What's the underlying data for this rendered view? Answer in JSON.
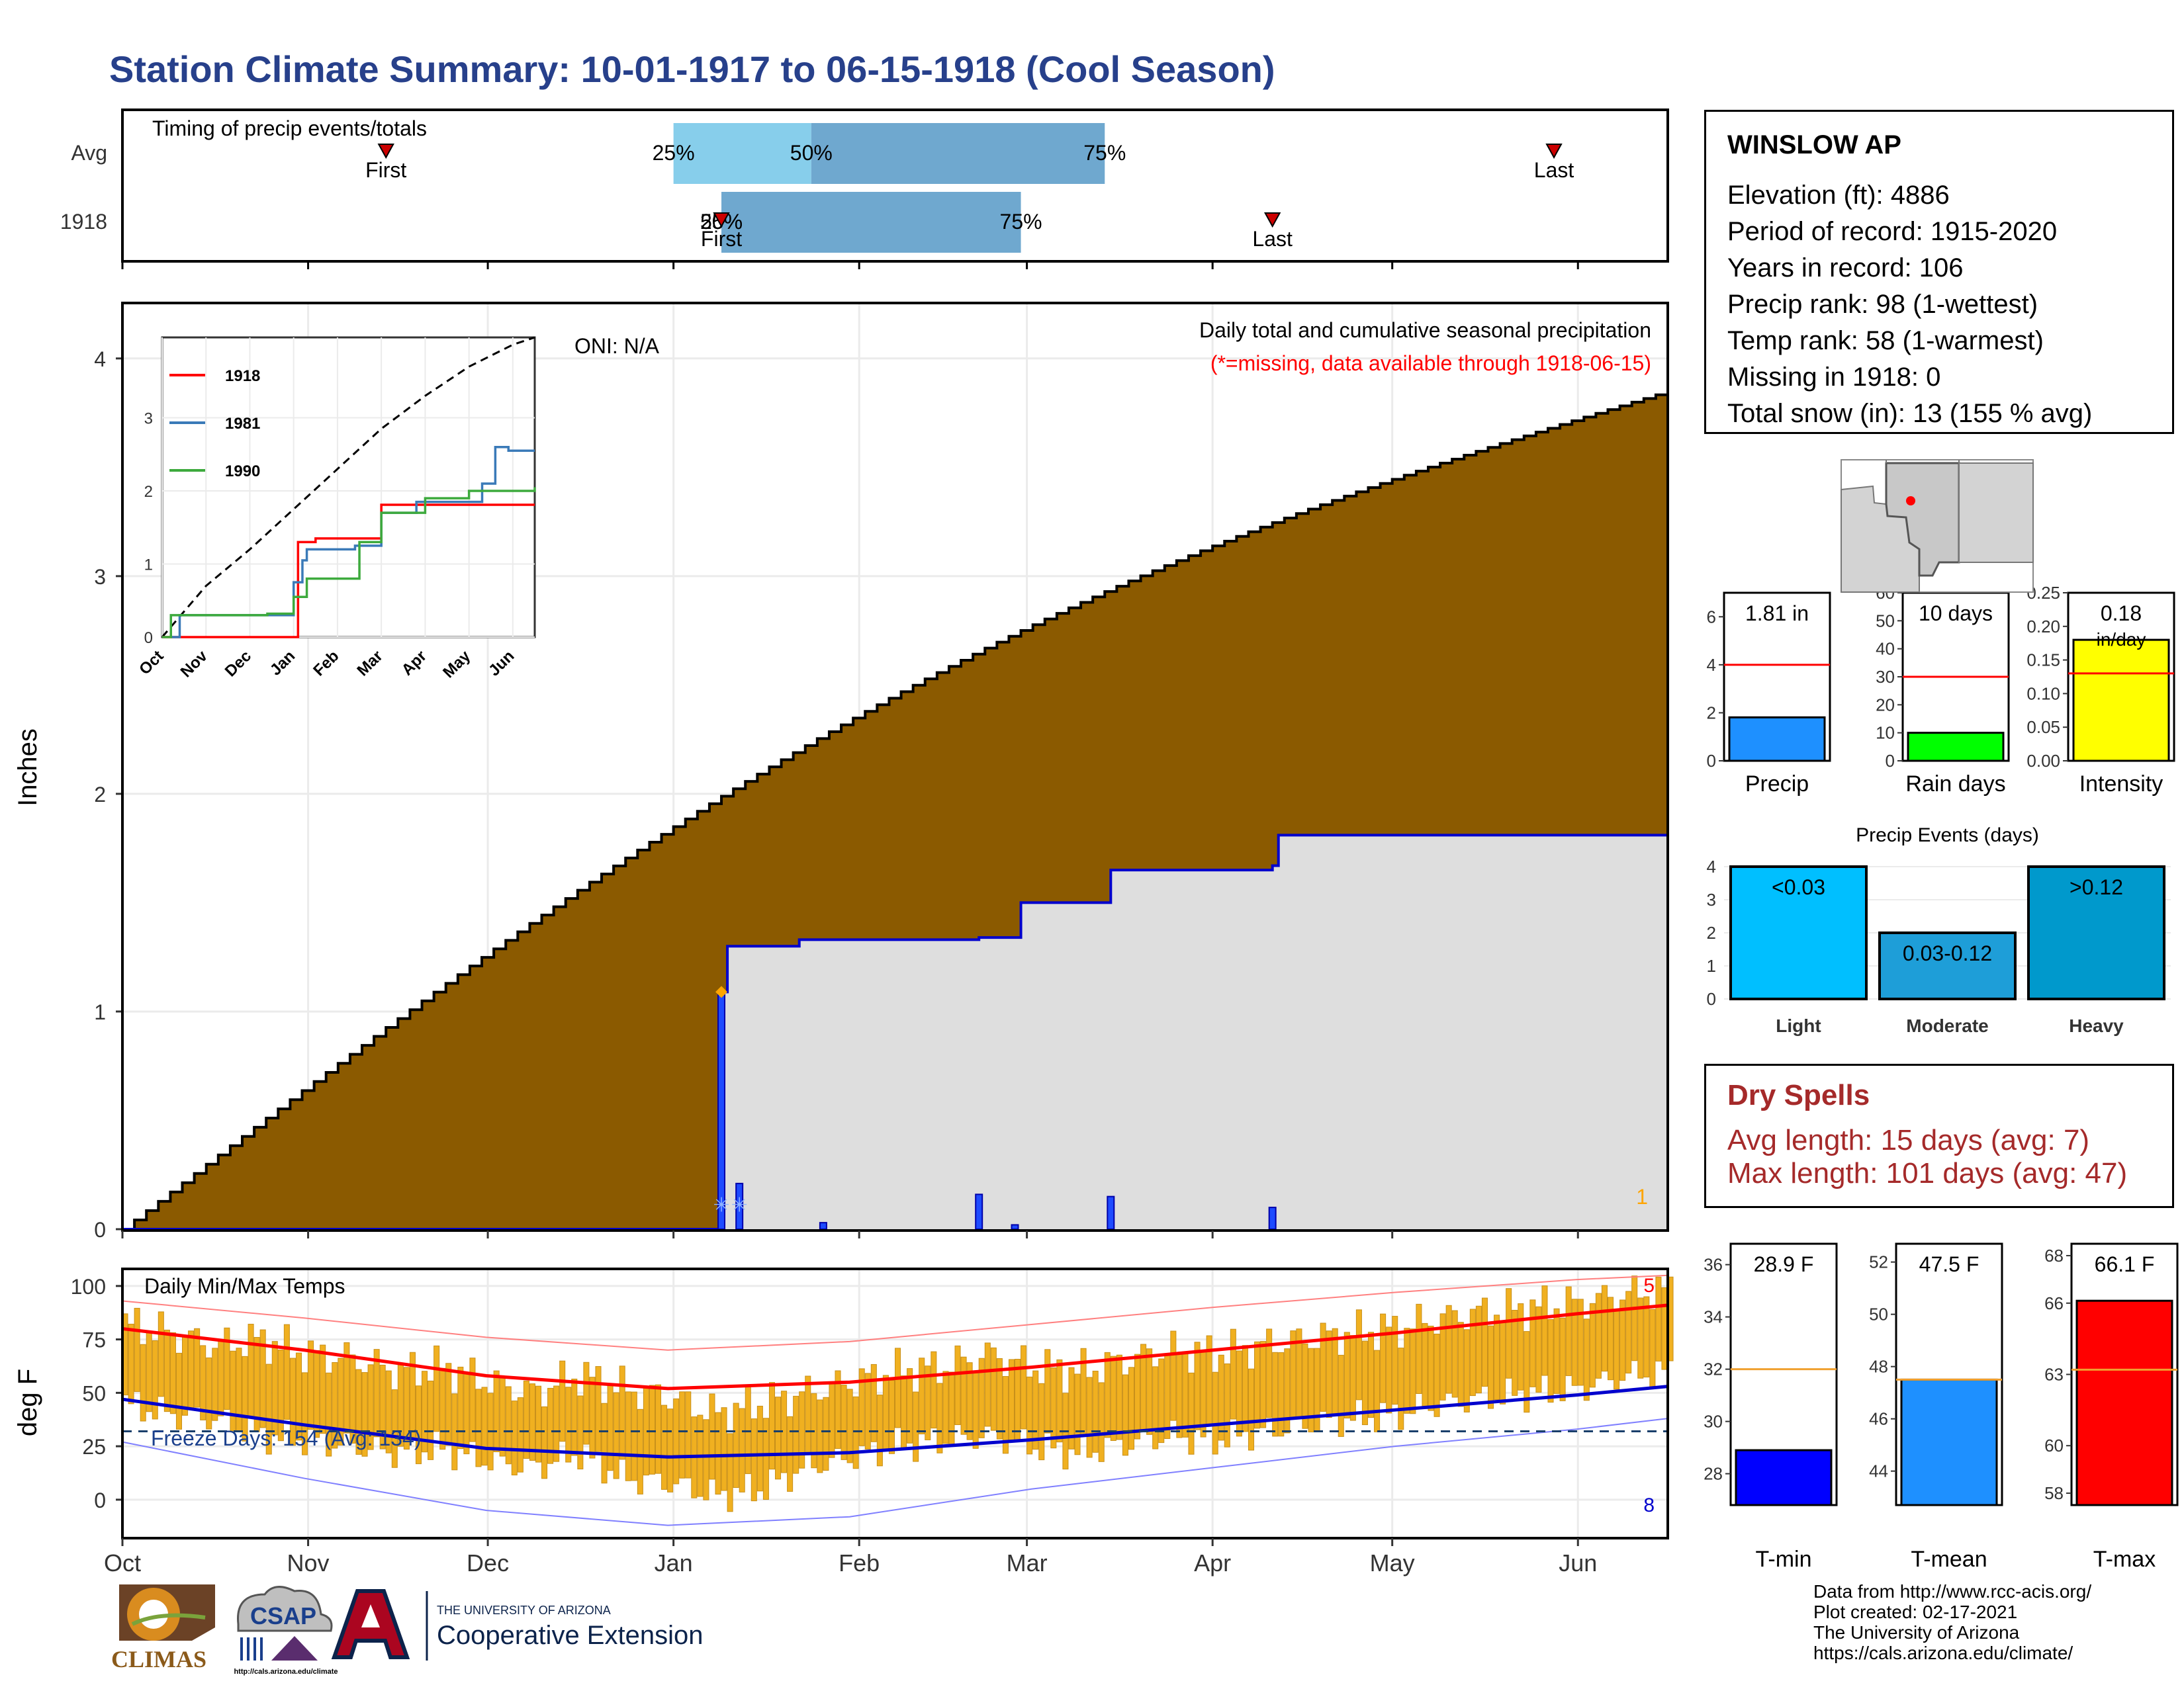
{
  "title": "Station Climate Summary: 10-01-1917 to 06-15-1918 (Cool Season)",
  "station": {
    "name": "WINSLOW AP",
    "lines": [
      "Elevation (ft): 4886",
      "Period of record: 1915-2020",
      "Years in record: 106",
      "Precip rank: 98 (1-wettest)",
      "Temp rank: 58 (1-warmest)",
      "Missing in 1918: 0",
      "Total snow (in): 13 (155 % avg)"
    ]
  },
  "dry_spells": {
    "title": "Dry Spells",
    "avg_line": "Avg length: 15 days (avg: 7)",
    "max_line": "Max length: 101 days (avg: 47)"
  },
  "footer": [
    "Data from http://www.rcc-acis.org/",
    "Plot created: 02-17-2021",
    "The University of Arizona",
    "https://cals.arizona.edu/climate/"
  ],
  "logos": {
    "climas": "CLIMAS",
    "csap": "CSAP",
    "csap_url": "http://cals.arizona.edu/climate",
    "ua_small": "THE UNIVERSITY OF ARIZONA",
    "ua_big": "Cooperative Extension"
  },
  "colors": {
    "title": "#27408b",
    "precip_fill": "#8b5a00",
    "daily_bar": "#0000ff",
    "tmax": "#ff0000",
    "tmin": "#0000cd",
    "temp_bar": "#f0b020",
    "timing_light": "#87ceeb",
    "timing_dark": "#6fa8cf",
    "dry_text": "#a52a2a"
  },
  "chart_data": [
    {
      "id": "timing",
      "type": "bar",
      "label": "Timing of precip events/totals",
      "rows": [
        {
          "name": "Avg",
          "first": "Nov 14",
          "p25": "Jan 1",
          "p50": "Jan 24",
          "p75": "Mar 14",
          "last": "May 28"
        },
        {
          "name": "1918",
          "first": "Jan 9",
          "p25": "Jan 9",
          "p50": "Jan 9",
          "p75": "Feb 28",
          "last": "Apr 11"
        }
      ],
      "labels": {
        "first": "First",
        "last": "Last",
        "p25": "25%",
        "p50": "50%",
        "p75": "75%"
      }
    },
    {
      "id": "precip",
      "type": "area",
      "title": "Daily total and cumulative seasonal precipitation",
      "subtitle": "(*=missing, data available through 1918-06-15)",
      "oni": "ONI: N/A",
      "ylabel": "Inches",
      "ylim": [
        0,
        4.2
      ],
      "yticks": [
        0,
        1,
        2,
        3,
        4
      ],
      "xticks": [
        "Oct",
        "Nov",
        "Dec",
        "Jan",
        "Feb",
        "Mar",
        "Apr",
        "May",
        "Jun"
      ],
      "avg_cumulative": {
        "x": [
          "Oct 1",
          "Jun 15"
        ],
        "y": [
          0,
          3.85
        ]
      },
      "cumulative_1918": {
        "x": [
          "Oct 1",
          "Jan 9",
          "Jan 10",
          "Jan 20",
          "Jan 22",
          "Feb 21",
          "Feb 28",
          "Mar 1",
          "Mar 15",
          "Apr 11",
          "Apr 12",
          "Jun 15"
        ],
        "y": [
          0,
          1.09,
          1.3,
          1.3,
          1.33,
          1.34,
          1.5,
          1.5,
          1.65,
          1.67,
          1.81,
          1.81
        ]
      },
      "daily_1918": {
        "x": [
          "Jan 9",
          "Jan 12",
          "Jan 26",
          "Feb 21",
          "Feb 27",
          "Mar 15",
          "Apr 11"
        ],
        "y": [
          1.09,
          0.21,
          0.03,
          0.16,
          0.02,
          0.15,
          0.1
        ]
      },
      "corner_value": "1"
    },
    {
      "id": "analog",
      "type": "line",
      "yticks": [
        0,
        1,
        2,
        3
      ],
      "ylim": [
        0,
        4.1
      ],
      "xticks": [
        "Oct",
        "Nov",
        "Dec",
        "Jan",
        "Feb",
        "Mar",
        "Apr",
        "May",
        "Jun"
      ],
      "series": [
        {
          "name": "1918",
          "color": "#ff0000",
          "x": [
            0,
            3.1,
            3.1,
            3.5,
            3.5,
            5.0,
            8.5
          ],
          "y": [
            0,
            0,
            1.3,
            1.35,
            1.35,
            1.81,
            1.81
          ]
        },
        {
          "name": "1981",
          "color": "#3a7ab8",
          "x": [
            0.2,
            0.4,
            2.3,
            3.0,
            3.2,
            3.3,
            4.4,
            5.0,
            5.8,
            7.3,
            7.6,
            7.9,
            8.5
          ],
          "y": [
            0,
            0.3,
            0.3,
            0.75,
            1.05,
            1.2,
            1.25,
            1.7,
            1.85,
            2.1,
            2.6,
            2.55,
            2.55
          ]
        },
        {
          "name": "1990",
          "color": "#3daa3d",
          "x": [
            0,
            0.2,
            2.4,
            3.0,
            3.3,
            4.5,
            5.0,
            6.0,
            7.0,
            8.5
          ],
          "y": [
            0,
            0.3,
            0.32,
            0.55,
            0.8,
            1.3,
            1.7,
            1.9,
            2.0,
            2.05
          ]
        }
      ],
      "avg_curve": {
        "x": [
          0,
          1,
          2,
          3,
          4,
          5,
          6,
          7,
          8,
          8.5
        ],
        "y": [
          0,
          0.7,
          1.2,
          1.75,
          2.3,
          2.85,
          3.3,
          3.7,
          4.0,
          4.1
        ]
      }
    },
    {
      "id": "precip-stats",
      "type": "bar",
      "panels": [
        {
          "label": "Precip",
          "value": 1.81,
          "avg": 4.0,
          "text": "1.81 in",
          "ylim": [
            0,
            7
          ],
          "yticks": [
            0,
            2,
            4,
            6
          ],
          "color": "#1e90ff"
        },
        {
          "label": "Rain days",
          "value": 10,
          "avg": 30,
          "text": "10 days",
          "ylim": [
            0,
            60
          ],
          "yticks": [
            0,
            10,
            20,
            30,
            40,
            50,
            60
          ],
          "color": "#00ff00"
        },
        {
          "label": "Intensity",
          "value": 0.18,
          "avg": 0.13,
          "text": "0.18",
          "subtext": "in/day",
          "ylim": [
            0,
            0.25
          ],
          "yticks": [
            "0.00",
            "0.05",
            "0.10",
            "0.15",
            "0.20",
            "0.25"
          ],
          "color": "#ffff00"
        }
      ]
    },
    {
      "id": "precip-events",
      "type": "bar",
      "title": "Precip Events (days)",
      "categories": [
        "Light",
        "Moderate",
        "Heavy"
      ],
      "bar_labels": [
        "<0.03",
        "0.03-0.12",
        ">0.12"
      ],
      "values": [
        4,
        2,
        4
      ],
      "ylim": [
        0,
        4.2
      ],
      "yticks": [
        0,
        1,
        2,
        3,
        4
      ],
      "colors": [
        "#00bfff",
        "#1e9ed8",
        "#0099cc"
      ]
    },
    {
      "id": "temps",
      "type": "line",
      "title": "Daily Min/Max Temps",
      "ylabel": "deg F",
      "ylim": [
        -18,
        108
      ],
      "yticks": [
        0,
        25,
        50,
        75,
        100
      ],
      "freeze_label": "Freeze Days: 154 (Avg: 134)",
      "freeze_line": 32,
      "avg_max": {
        "x": [
          0,
          1,
          2,
          3,
          4,
          5,
          6,
          7,
          8,
          8.5
        ],
        "y": [
          80,
          70,
          58,
          52,
          55,
          62,
          70,
          78,
          87,
          91
        ]
      },
      "avg_min": {
        "x": [
          0,
          1,
          2,
          3,
          4,
          5,
          6,
          7,
          8,
          8.5
        ],
        "y": [
          47,
          35,
          24,
          20,
          22,
          28,
          35,
          42,
          49,
          53
        ]
      },
      "record_high": {
        "x": [
          0,
          1,
          2,
          3,
          4,
          5,
          6,
          7,
          8,
          8.5
        ],
        "y": [
          93,
          85,
          76,
          70,
          74,
          82,
          90,
          97,
          103,
          105
        ]
      },
      "record_low": {
        "x": [
          0,
          1,
          2,
          3,
          4,
          5,
          6,
          7,
          8,
          8.5
        ],
        "y": [
          27,
          10,
          -5,
          -12,
          -8,
          5,
          15,
          25,
          33,
          38
        ]
      },
      "daily_1918": {
        "x": [
          0,
          0.25,
          0.5,
          0.75,
          1,
          1.25,
          1.5,
          1.75,
          2,
          2.25,
          2.5,
          2.75,
          3,
          3.25,
          3.5,
          3.75,
          4,
          4.25,
          4.5,
          4.75,
          5,
          5.25,
          5.5,
          5.75,
          6,
          6.25,
          6.5,
          6.75,
          7,
          7.25,
          7.5,
          7.75,
          8,
          8.25,
          8.5
        ],
        "max": [
          82,
          78,
          72,
          75,
          68,
          66,
          60,
          62,
          55,
          50,
          58,
          52,
          48,
          40,
          45,
          50,
          55,
          60,
          62,
          68,
          62,
          60,
          65,
          70,
          68,
          72,
          75,
          78,
          80,
          85,
          88,
          90,
          92,
          96,
          98
        ],
        "min": [
          45,
          40,
          38,
          30,
          28,
          25,
          22,
          24,
          18,
          15,
          22,
          10,
          8,
          2,
          5,
          15,
          20,
          25,
          28,
          30,
          25,
          22,
          26,
          30,
          28,
          32,
          35,
          38,
          40,
          45,
          48,
          50,
          52,
          58,
          60
        ]
      },
      "corner_top": "5",
      "corner_bottom": "8"
    },
    {
      "id": "temp-stats",
      "type": "bar",
      "panels": [
        {
          "label": "T-min",
          "value": 28.9,
          "avg": 32.0,
          "text": "28.9 F",
          "ylim": [
            26.8,
            36.8
          ],
          "yticks": [
            28,
            30,
            32,
            34,
            36
          ],
          "color": "#0000ff"
        },
        {
          "label": "T-mean",
          "value": 47.5,
          "avg": 47.5,
          "text": "47.5 F",
          "ylim": [
            42.7,
            52.7
          ],
          "yticks": [
            44,
            46,
            48,
            50,
            52
          ],
          "color": "#1e90ff"
        },
        {
          "label": "T-max",
          "value": 66.1,
          "avg": 63.2,
          "text": "66.1 F",
          "ylim": [
            57.5,
            68.5
          ],
          "yticks": [
            58,
            60,
            63,
            66,
            68
          ],
          "color": "#ff0000"
        }
      ]
    }
  ],
  "month_labels": [
    "Oct",
    "Nov",
    "Dec",
    "Jan",
    "Feb",
    "Mar",
    "Apr",
    "May",
    "Jun"
  ]
}
